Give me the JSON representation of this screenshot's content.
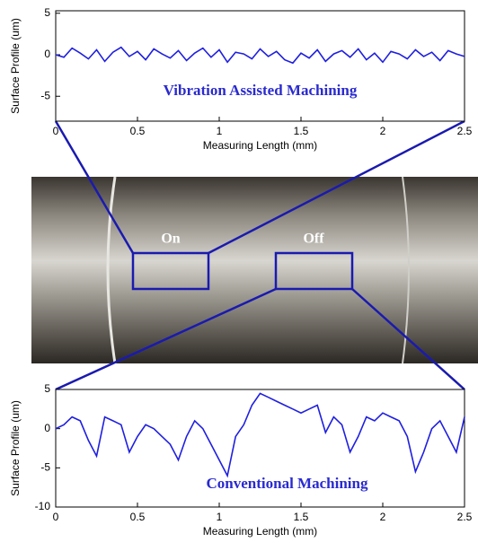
{
  "chart_data": [
    {
      "type": "line",
      "annotation": "Vibration Assisted Machining",
      "x_label": "Measuring Length (mm)",
      "y_label": "Surface Profile (um)",
      "xlim": [
        0,
        2.5
      ],
      "xticks": [
        0,
        0.5,
        1,
        1.5,
        2,
        2.5
      ],
      "ylim": [
        -8,
        5.3
      ],
      "yticks": [
        -5,
        0,
        5
      ],
      "series": [
        {
          "color": "#1f1fe0",
          "x": [
            0,
            0.05,
            0.1,
            0.15,
            0.2,
            0.25,
            0.3,
            0.35,
            0.4,
            0.45,
            0.5,
            0.55,
            0.6,
            0.65,
            0.7,
            0.75,
            0.8,
            0.85,
            0.9,
            0.95,
            1,
            1.05,
            1.1,
            1.15,
            1.2,
            1.25,
            1.3,
            1.35,
            1.4,
            1.45,
            1.5,
            1.55,
            1.6,
            1.65,
            1.7,
            1.75,
            1.8,
            1.85,
            1.9,
            1.95,
            2,
            2.05,
            2.1,
            2.15,
            2.2,
            2.25,
            2.3,
            2.35,
            2.4,
            2.45,
            2.5
          ],
          "values": [
            0,
            -0.3,
            0.8,
            0.2,
            -0.5,
            0.6,
            -0.8,
            0.3,
            0.9,
            -0.2,
            0.4,
            -0.6,
            0.7,
            0.1,
            -0.4,
            0.5,
            -0.7,
            0.2,
            0.8,
            -0.3,
            0.6,
            -0.9,
            0.3,
            0.1,
            -0.5,
            0.7,
            -0.2,
            0.4,
            -0.6,
            -1,
            0.2,
            -0.4,
            0.6,
            -0.8,
            0.1,
            0.5,
            -0.3,
            0.7,
            -0.6,
            0.2,
            -0.9,
            0.4,
            0.1,
            -0.5,
            0.6,
            -0.2,
            0.3,
            -0.7,
            0.5,
            0.1,
            -0.2
          ]
        }
      ]
    },
    {
      "type": "line",
      "annotation": "Conventional Machining",
      "x_label": "Measuring Length (mm)",
      "y_label": "Surface Profile (um)",
      "xlim": [
        0,
        2.5
      ],
      "xticks": [
        0,
        0.5,
        1,
        1.5,
        2,
        2.5
      ],
      "ylim": [
        -10,
        5
      ],
      "yticks": [
        -10,
        -5,
        0,
        5
      ],
      "series": [
        {
          "color": "#1f1fe0",
          "x": [
            0,
            0.05,
            0.1,
            0.15,
            0.2,
            0.25,
            0.3,
            0.35,
            0.4,
            0.45,
            0.5,
            0.55,
            0.6,
            0.65,
            0.7,
            0.75,
            0.8,
            0.85,
            0.9,
            0.95,
            1,
            1.05,
            1.1,
            1.15,
            1.2,
            1.25,
            1.3,
            1.35,
            1.4,
            1.45,
            1.5,
            1.55,
            1.6,
            1.65,
            1.7,
            1.75,
            1.8,
            1.85,
            1.9,
            1.95,
            2,
            2.05,
            2.1,
            2.15,
            2.2,
            2.25,
            2.3,
            2.35,
            2.4,
            2.45,
            2.5
          ],
          "values": [
            0,
            0.5,
            1.5,
            1,
            -1.5,
            -3.5,
            1.5,
            1,
            0.5,
            -3,
            -1,
            0.5,
            0,
            -1,
            -2,
            -4,
            -1,
            1,
            0,
            -2,
            -4,
            -6,
            -1,
            0.5,
            3,
            4.5,
            4,
            3.5,
            3,
            2.5,
            2,
            2.5,
            3,
            -0.5,
            1.5,
            0.5,
            -3,
            -1,
            1.5,
            1,
            2,
            1.5,
            1,
            -1,
            -5.5,
            -3,
            0,
            1,
            -1,
            -3,
            1.5
          ]
        }
      ]
    }
  ],
  "photo": {
    "labels": [
      "On",
      "Off"
    ]
  }
}
